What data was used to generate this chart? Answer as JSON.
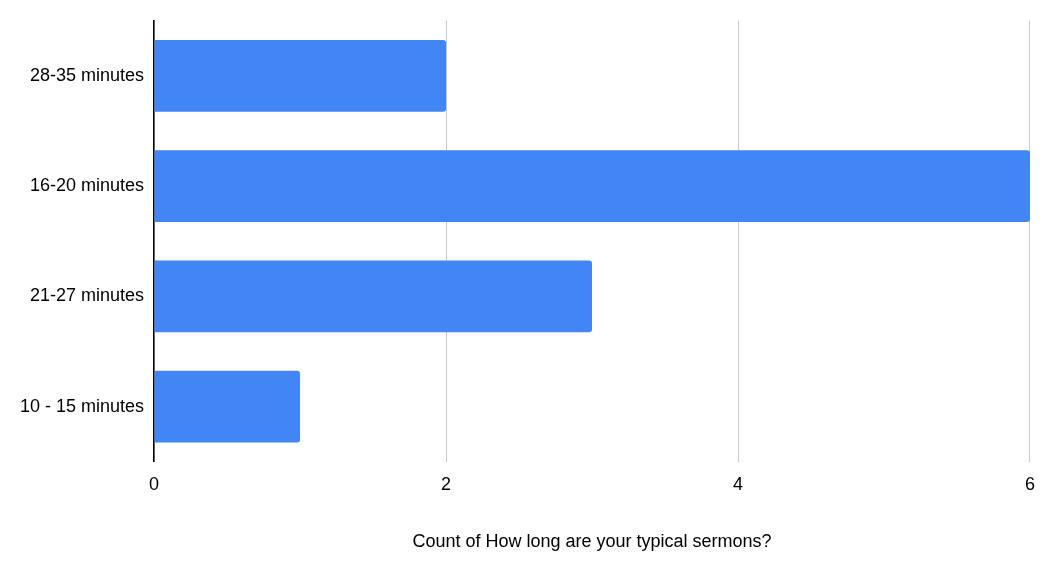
{
  "chart_data": {
    "type": "bar",
    "orientation": "horizontal",
    "xlabel": "Count of How long are your typical sermons?",
    "categories": [
      "28-35 minutes",
      "16-20 minutes",
      "21-27 minutes",
      "10 - 15 minutes"
    ],
    "values": [
      2,
      6,
      3,
      1
    ],
    "color": "#4285f4",
    "xlim": [
      0,
      6
    ],
    "xticks": [
      0,
      2,
      4,
      6
    ],
    "grid": "x",
    "legend": false
  }
}
